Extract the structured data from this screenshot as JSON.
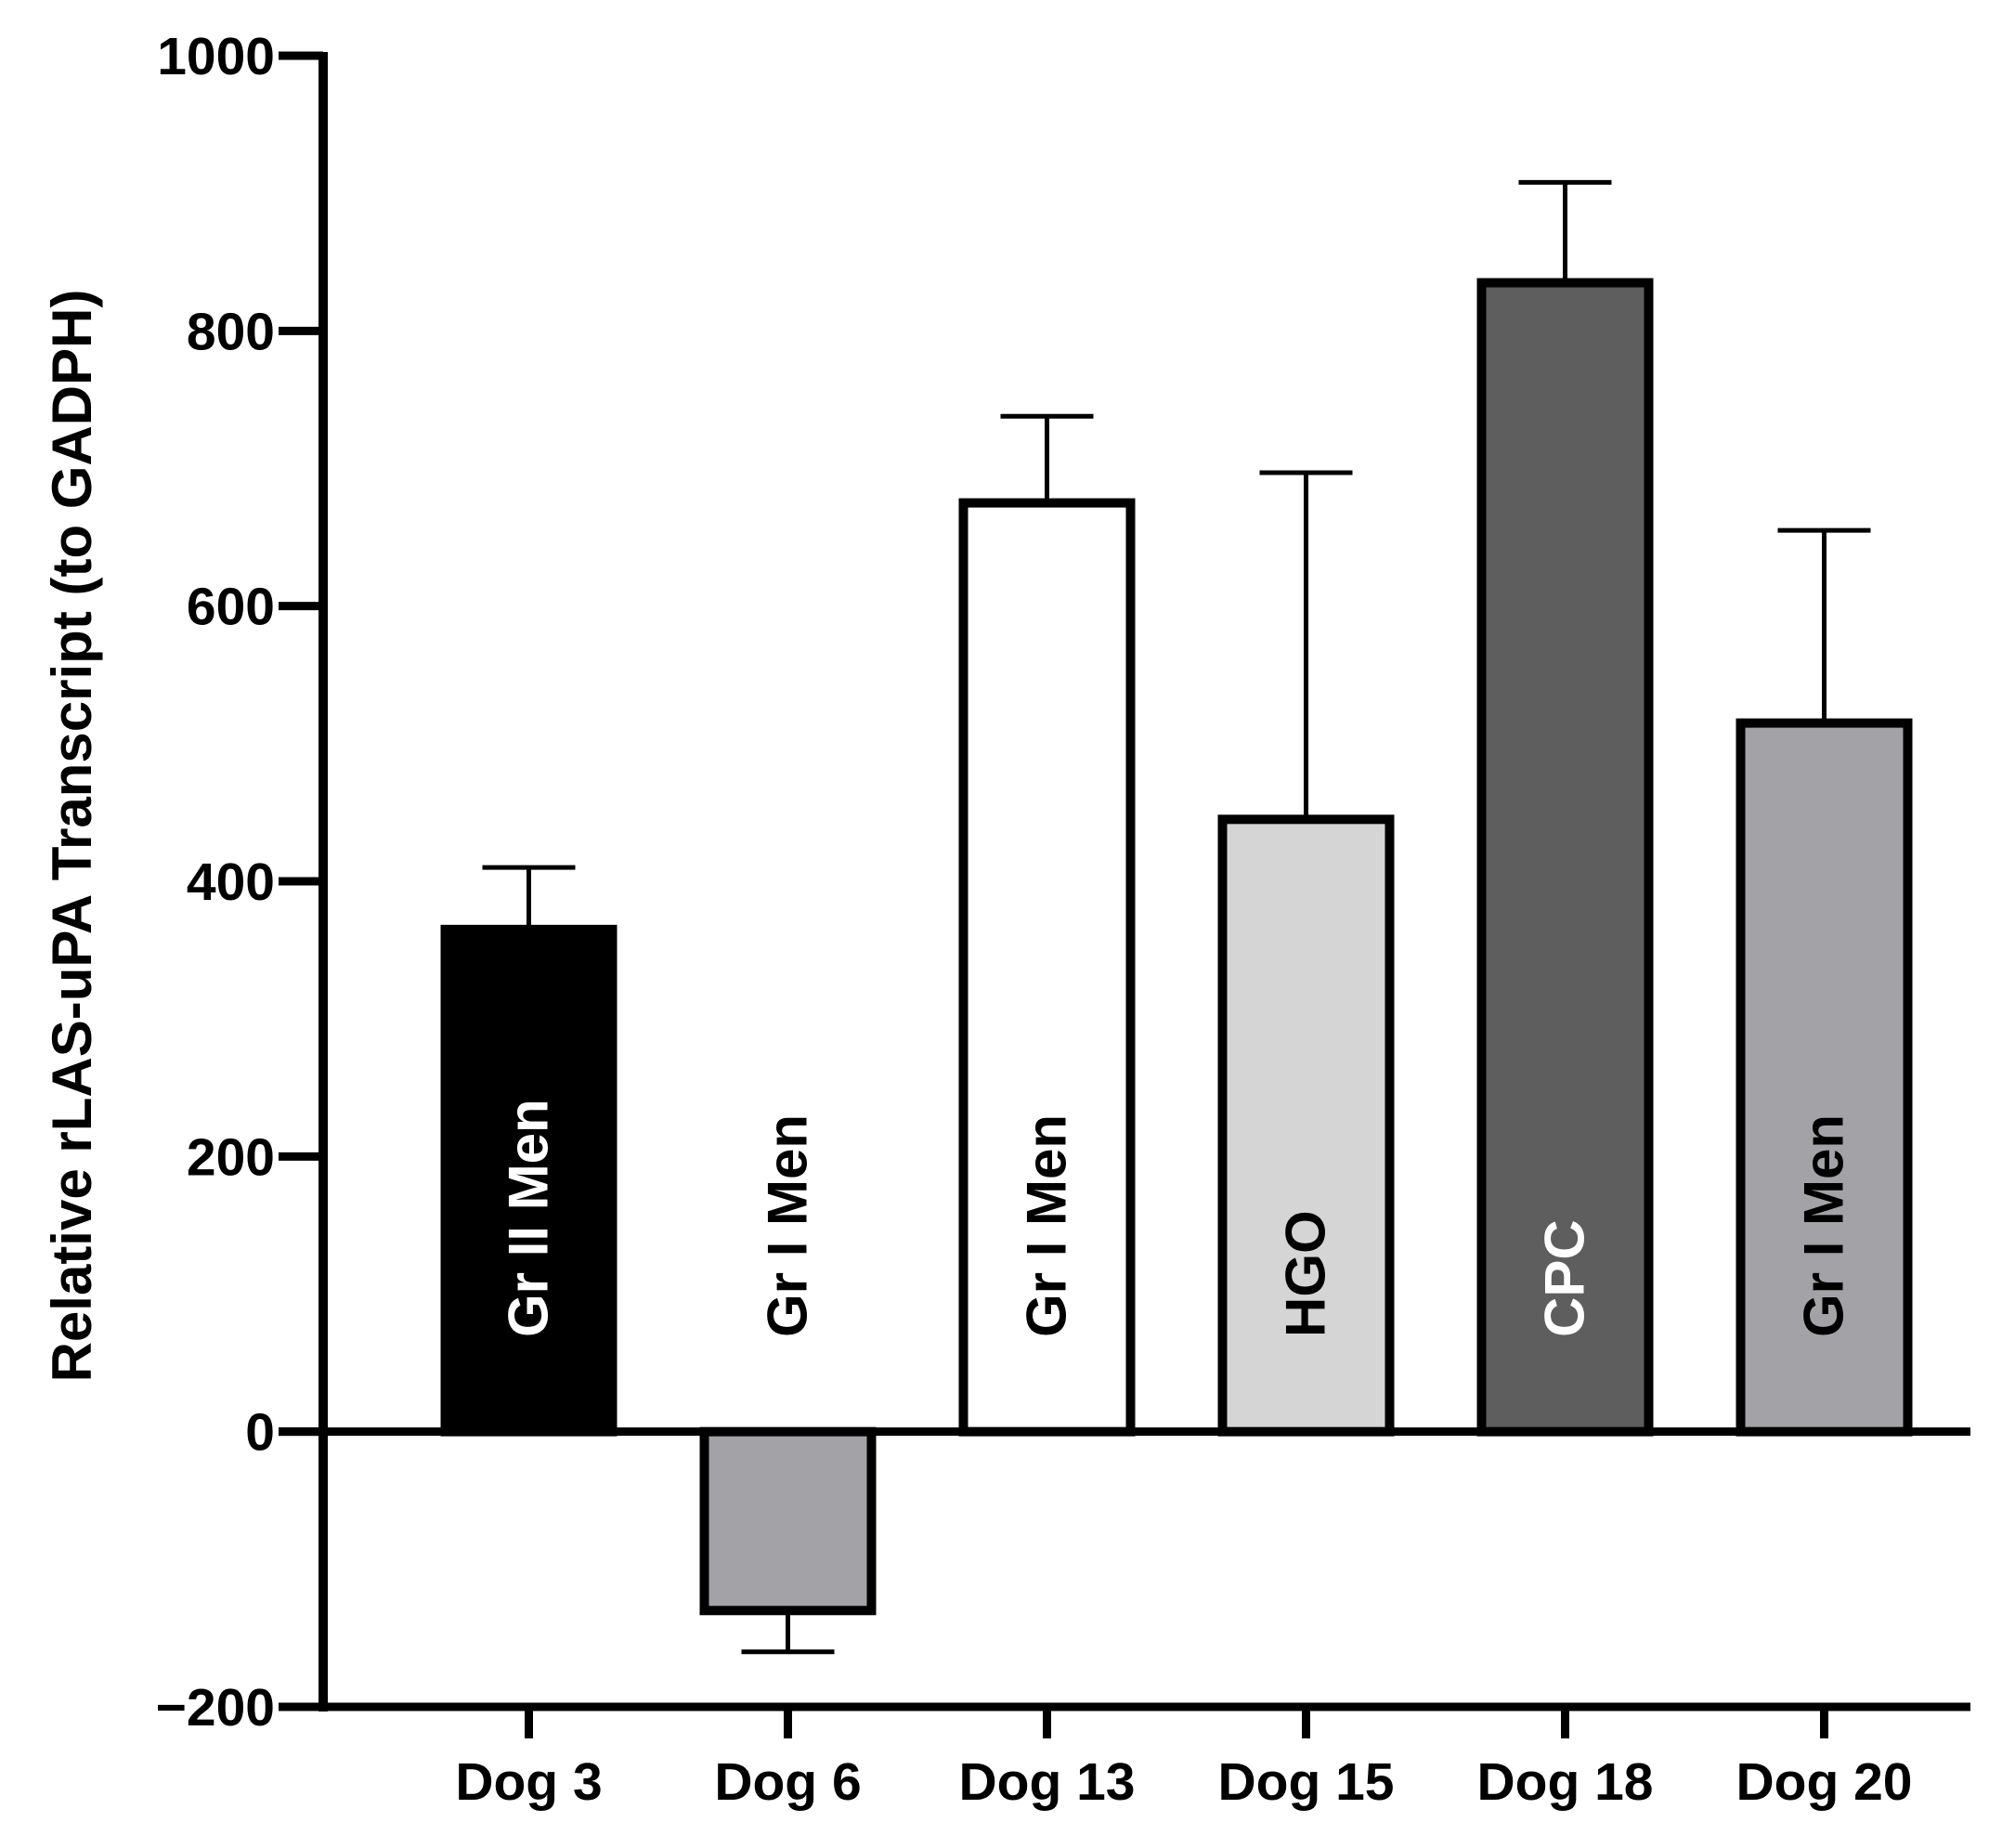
{
  "chart_data": {
    "type": "bar",
    "title": "",
    "xlabel": "",
    "ylabel": "Relative rLAS-uPA Transcript (to GADPH)",
    "ylim": [
      -200,
      1000
    ],
    "yticks": [
      -200,
      0,
      200,
      400,
      600,
      800,
      1000
    ],
    "ytick_labels": [
      "−200",
      "0",
      "200",
      "400",
      "600",
      "800",
      "1000"
    ],
    "categories": [
      "Dog 3",
      "Dog 6",
      "Dog 13",
      "Dog 15",
      "Dog 18",
      "Dog 20"
    ],
    "values": [
      365,
      -130,
      675,
      445,
      835,
      515
    ],
    "error_upper": [
      45,
      30,
      63,
      252,
      73,
      140
    ],
    "bar_labels": [
      "Gr II Men",
      "Gr I Men",
      "Gr I Men",
      "HGO",
      "CPC",
      "Gr I Men"
    ],
    "bar_colors": [
      "#000000",
      "#a3a2a6",
      "#ffffff",
      "#d5d5d5",
      "#5e5e5e",
      "#a3a2a6"
    ],
    "label_colors": [
      "#ffffff",
      "#000000",
      "#000000",
      "#000000",
      "#ffffff",
      "#000000"
    ],
    "grid": false,
    "legend": "none"
  }
}
